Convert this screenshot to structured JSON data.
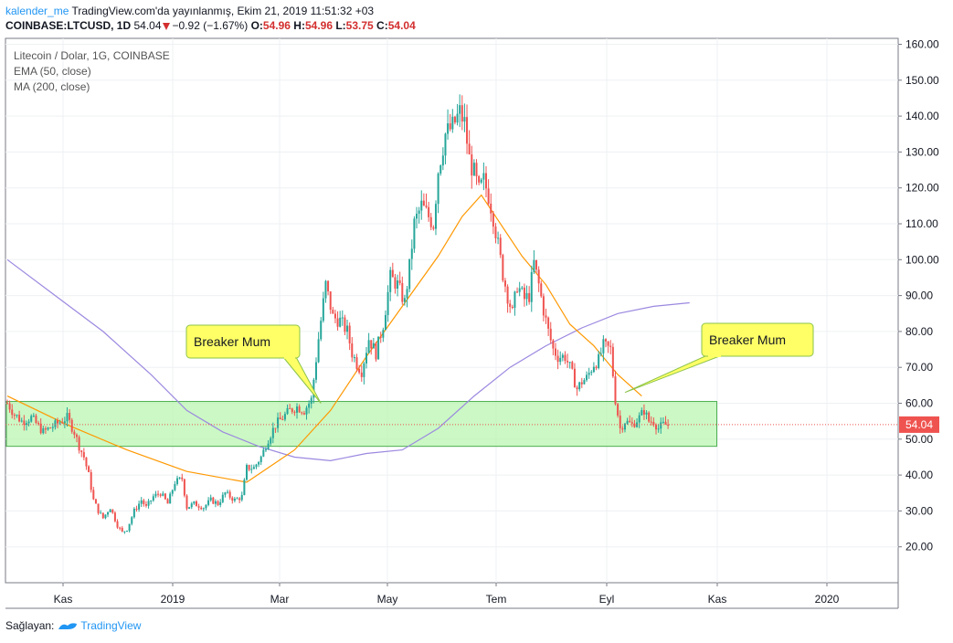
{
  "header": {
    "author": "kalender_me",
    "published": "TradingView.com'da yayınlanmış, Ekim 21, 2019 11:51:32 +03",
    "symbol": "COINBASE:LTCUSD, 1D",
    "last": "54.04",
    "change": "−0.92 (−1.67%)",
    "o_label": "O:",
    "o_value": "54.96",
    "h_label": "H:",
    "h_value": "54.96",
    "l_label": "L:",
    "l_value": "53.75",
    "c_label": "C:",
    "c_value": "54.04"
  },
  "legend": {
    "title": "Litecoin / Dolar, 1G, COINBASE",
    "ema": "EMA (50, close)",
    "ma": "MA (200, close)"
  },
  "footer": {
    "provided_by": "Sağlayan:",
    "brand": "TradingView"
  },
  "colors": {
    "up": "#26a69a",
    "down": "#ef5350",
    "ema": "#ff9800",
    "ma": "#9c88e0",
    "zone_fill": "#b9f6b0",
    "zone_stroke": "#4caf50",
    "callout_fill": "#ffff66",
    "callout_stroke": "#8bc34a",
    "price_tag": "#ef5350"
  },
  "chart_data": {
    "type": "candlestick",
    "y_axis_ticks": [
      "160.00",
      "150.00",
      "140.00",
      "130.00",
      "120.00",
      "110.00",
      "100.00",
      "90.00",
      "80.00",
      "70.00",
      "60.00",
      "50.00",
      "40.00",
      "30.00",
      "20.00"
    ],
    "x_axis_labels": [
      "Kas",
      "2019",
      "Mar",
      "May",
      "Tem",
      "Eyl",
      "Kas",
      "2020"
    ],
    "ylim": [
      10,
      162
    ],
    "last_price_label": "54.04",
    "price_path": [
      [
        0,
        60
      ],
      [
        3,
        57
      ],
      [
        6,
        55
      ],
      [
        10,
        56
      ],
      [
        15,
        52
      ],
      [
        20,
        54
      ],
      [
        25,
        56
      ],
      [
        28,
        52
      ],
      [
        30,
        48
      ],
      [
        32,
        45
      ],
      [
        34,
        40
      ],
      [
        36,
        33
      ],
      [
        38,
        30
      ],
      [
        40,
        28
      ],
      [
        43,
        31
      ],
      [
        46,
        26
      ],
      [
        48,
        24
      ],
      [
        50,
        25
      ],
      [
        53,
        30
      ],
      [
        56,
        33
      ],
      [
        58,
        31
      ],
      [
        61,
        34
      ],
      [
        64,
        35
      ],
      [
        67,
        32
      ],
      [
        70,
        38
      ],
      [
        73,
        39
      ],
      [
        75,
        31
      ],
      [
        78,
        32
      ],
      [
        82,
        31
      ],
      [
        85,
        33
      ],
      [
        88,
        32
      ],
      [
        91,
        35
      ],
      [
        95,
        33
      ],
      [
        98,
        34
      ],
      [
        100,
        42
      ],
      [
        103,
        42
      ],
      [
        106,
        45
      ],
      [
        109,
        50
      ],
      [
        112,
        54
      ],
      [
        115,
        56
      ],
      [
        118,
        58
      ],
      [
        121,
        59
      ],
      [
        124,
        58
      ],
      [
        127,
        61
      ],
      [
        130,
        78
      ],
      [
        133,
        93
      ],
      [
        136,
        84
      ],
      [
        139,
        83
      ],
      [
        142,
        80
      ],
      [
        144,
        74
      ],
      [
        146,
        71
      ],
      [
        148,
        69
      ],
      [
        151,
        78
      ],
      [
        154,
        74
      ],
      [
        157,
        82
      ],
      [
        160,
        95
      ],
      [
        163,
        93
      ],
      [
        166,
        88
      ],
      [
        168,
        98
      ],
      [
        170,
        110
      ],
      [
        173,
        115
      ],
      [
        176,
        112
      ],
      [
        178,
        110
      ],
      [
        180,
        125
      ],
      [
        183,
        135
      ],
      [
        186,
        137
      ],
      [
        189,
        141
      ],
      [
        191,
        138
      ],
      [
        193,
        128
      ],
      [
        195,
        124
      ],
      [
        197,
        119
      ],
      [
        199,
        122
      ],
      [
        201,
        118
      ],
      [
        203,
        112
      ],
      [
        205,
        104
      ],
      [
        207,
        96
      ],
      [
        209,
        90
      ],
      [
        211,
        85
      ],
      [
        213,
        93
      ],
      [
        216,
        89
      ],
      [
        218,
        90
      ],
      [
        220,
        99
      ],
      [
        222,
        93
      ],
      [
        224,
        86
      ],
      [
        226,
        80
      ],
      [
        228,
        75
      ],
      [
        230,
        73
      ],
      [
        233,
        73
      ],
      [
        235,
        70
      ],
      [
        238,
        64
      ],
      [
        240,
        66
      ],
      [
        242,
        67
      ],
      [
        245,
        71
      ],
      [
        247,
        72
      ],
      [
        249,
        76
      ],
      [
        252,
        75
      ],
      [
        254,
        61
      ],
      [
        256,
        53
      ],
      [
        258,
        55
      ],
      [
        261,
        54
      ],
      [
        264,
        56
      ],
      [
        266,
        58
      ],
      [
        268,
        55
      ],
      [
        270,
        55
      ],
      [
        272,
        53
      ],
      [
        274,
        54
      ],
      [
        276,
        54
      ]
    ],
    "ema50": [
      [
        0,
        62
      ],
      [
        25,
        54
      ],
      [
        50,
        47
      ],
      [
        75,
        41
      ],
      [
        100,
        38
      ],
      [
        120,
        47
      ],
      [
        135,
        58
      ],
      [
        150,
        73
      ],
      [
        165,
        87
      ],
      [
        180,
        101
      ],
      [
        190,
        112
      ],
      [
        198,
        118
      ],
      [
        205,
        111
      ],
      [
        215,
        101
      ],
      [
        225,
        93
      ],
      [
        235,
        82
      ],
      [
        245,
        76
      ],
      [
        255,
        68
      ],
      [
        265,
        62
      ]
    ],
    "ma200": [
      [
        0,
        100
      ],
      [
        20,
        90
      ],
      [
        40,
        80
      ],
      [
        60,
        68
      ],
      [
        75,
        58
      ],
      [
        90,
        52
      ],
      [
        105,
        48
      ],
      [
        120,
        45
      ],
      [
        135,
        44
      ],
      [
        150,
        46
      ],
      [
        165,
        47
      ],
      [
        180,
        53
      ],
      [
        195,
        62
      ],
      [
        210,
        70
      ],
      [
        225,
        76
      ],
      [
        240,
        81
      ],
      [
        255,
        85
      ],
      [
        270,
        87
      ],
      [
        285,
        88
      ]
    ],
    "zone": {
      "y_top": 60.5,
      "y_bottom": 48,
      "x_end": 296
    },
    "callouts": [
      {
        "text": "Breaker Mum",
        "target_bar": 131,
        "target_price": 60
      },
      {
        "text": "Breaker Mum",
        "target_bar": 258,
        "target_price": 63
      }
    ]
  }
}
